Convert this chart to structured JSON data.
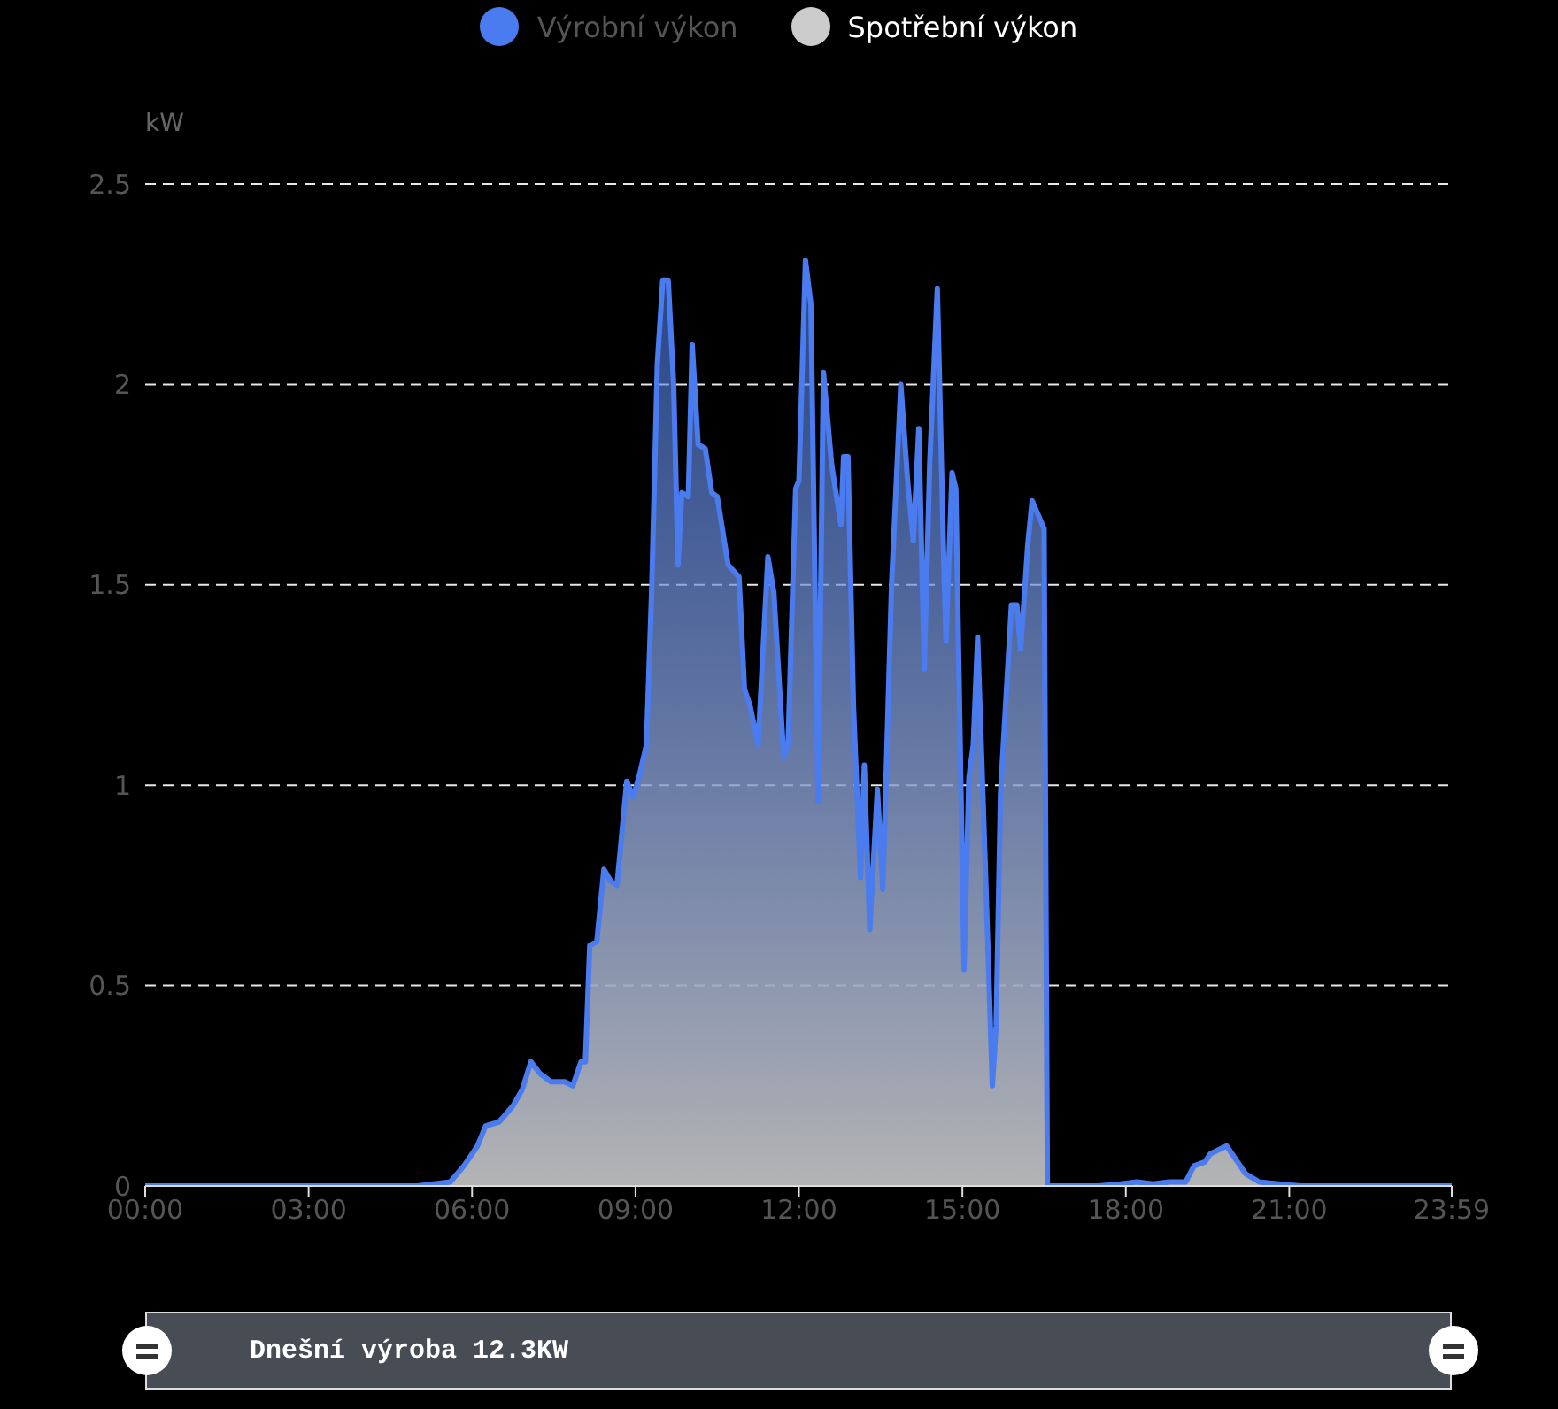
{
  "chart_data": {
    "type": "area",
    "ylabel": "kW",
    "legend": "top",
    "grid": "y",
    "marker": "none",
    "line_style": "solid",
    "x": [
      0,
      1,
      2,
      3,
      4,
      5,
      5.3,
      5.6,
      5.85,
      6.1,
      6.25,
      6.5,
      6.75,
      6.92,
      7.08,
      7.25,
      7.45,
      7.7,
      7.85,
      8.0,
      8.08,
      8.16,
      8.29,
      8.42,
      8.55,
      8.66,
      8.84,
      8.96,
      9.08,
      9.2,
      9.3,
      9.4,
      9.5,
      9.6,
      9.7,
      9.78,
      9.85,
      9.97,
      10.04,
      10.15,
      10.28,
      10.4,
      10.5,
      10.7,
      10.9,
      11.0,
      11.1,
      11.25,
      11.43,
      11.54,
      11.72,
      11.8,
      11.94,
      12.0,
      12.12,
      12.22,
      12.35,
      12.45,
      12.6,
      12.77,
      12.82,
      12.9,
      13.0,
      13.13,
      13.2,
      13.3,
      13.44,
      13.54,
      13.7,
      13.87,
      14.0,
      14.1,
      14.2,
      14.3,
      14.4,
      14.54,
      14.66,
      14.7,
      14.81,
      14.88,
      15.03,
      15.12,
      15.2,
      15.28,
      15.42,
      15.55,
      15.62,
      15.7,
      15.9,
      16.0,
      16.07,
      16.2,
      16.28,
      16.5,
      16.56,
      17.5,
      17.9,
      18.2,
      18.5,
      18.8,
      19.1,
      19.25,
      19.45,
      19.55,
      19.7,
      19.85,
      20.0,
      20.2,
      20.45,
      20.8,
      21.2,
      23.983
    ],
    "series": [
      {
        "name": "Výrobní výkon",
        "color": "#4a7cf0",
        "values": [
          0,
          0,
          0,
          0,
          0,
          0,
          0.005,
          0.01,
          0.05,
          0.1,
          0.15,
          0.16,
          0.2,
          0.24,
          0.31,
          0.28,
          0.26,
          0.26,
          0.25,
          0.31,
          0.31,
          0.6,
          0.61,
          0.79,
          0.76,
          0.75,
          1.01,
          0.97,
          1.03,
          1.1,
          1.5,
          2.05,
          2.26,
          2.26,
          2.0,
          1.55,
          1.73,
          1.72,
          2.1,
          1.85,
          1.84,
          1.73,
          1.72,
          1.55,
          1.52,
          1.24,
          1.2,
          1.1,
          1.57,
          1.48,
          1.07,
          1.1,
          1.74,
          1.76,
          2.31,
          2.2,
          0.96,
          2.03,
          1.8,
          1.65,
          1.82,
          1.82,
          1.2,
          0.77,
          1.05,
          0.64,
          0.99,
          0.74,
          1.5,
          2.0,
          1.75,
          1.61,
          1.89,
          1.29,
          1.8,
          2.24,
          1.55,
          1.36,
          1.78,
          1.74,
          0.54,
          1.02,
          1.1,
          1.37,
          0.8,
          0.25,
          0.4,
          0.98,
          1.45,
          1.45,
          1.34,
          1.6,
          1.71,
          1.64,
          0,
          0,
          0.005,
          0.01,
          0.005,
          0.01,
          0.01,
          0.05,
          0.06,
          0.08,
          0.09,
          0.1,
          0.07,
          0.03,
          0.01,
          0.005,
          0,
          0
        ]
      },
      {
        "name": "Spotřební výkon",
        "color": "#cccccc",
        "values": [
          null,
          null,
          null,
          null,
          null,
          null,
          null,
          null,
          null,
          null,
          null,
          null,
          null,
          null,
          null,
          null,
          null,
          null,
          null,
          null,
          null,
          null,
          null,
          null,
          null,
          null,
          null,
          null,
          null,
          null,
          null,
          null,
          null,
          null,
          null,
          null,
          null,
          null,
          null,
          null,
          null,
          null,
          null,
          null,
          null,
          null,
          null,
          null,
          null,
          null,
          null,
          null,
          null,
          null,
          null,
          null,
          null,
          null,
          null,
          null,
          null,
          null,
          null,
          null,
          null,
          null,
          null,
          null,
          null,
          null,
          null,
          null,
          null,
          null,
          null,
          null,
          null,
          null,
          null,
          null,
          null,
          null,
          null,
          null,
          null,
          null,
          null,
          null,
          null,
          null,
          null,
          null,
          null,
          null,
          null,
          null,
          null,
          null,
          null,
          null,
          null,
          null,
          null,
          null,
          null,
          null,
          null,
          null,
          null,
          null,
          null,
          null
        ]
      }
    ],
    "ylim": [
      0,
      2.5
    ],
    "yticks": [
      0,
      0.5,
      1,
      1.5,
      2,
      2.5
    ],
    "xlim": [
      0,
      23.983
    ],
    "xticks": [
      {
        "value": 0,
        "label": "00:00"
      },
      {
        "value": 3,
        "label": "03:00"
      },
      {
        "value": 6,
        "label": "06:00"
      },
      {
        "value": 9,
        "label": "09:00"
      },
      {
        "value": 12,
        "label": "12:00"
      },
      {
        "value": 15,
        "label": "15:00"
      },
      {
        "value": 18,
        "label": "18:00"
      },
      {
        "value": 21,
        "label": "21:00"
      },
      {
        "value": 23.983,
        "label": "23:59"
      }
    ],
    "annotations": [
      "Dnešní výroba 12.3KW"
    ]
  }
}
